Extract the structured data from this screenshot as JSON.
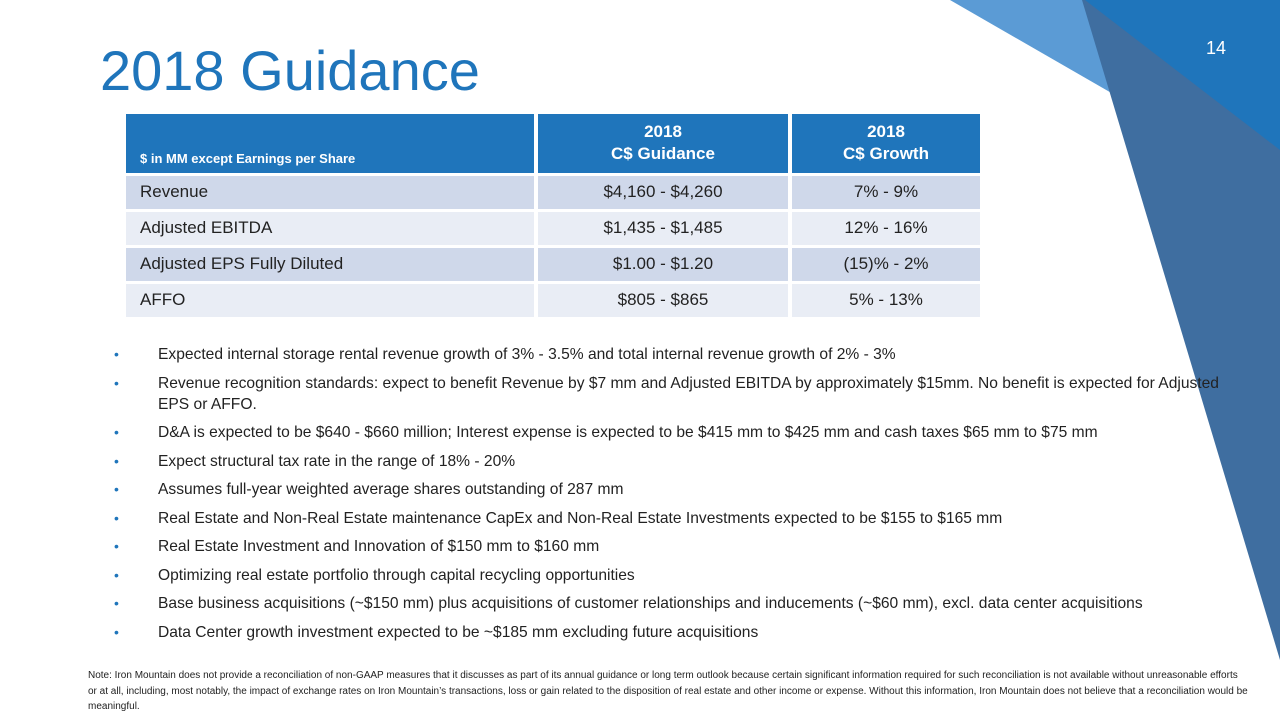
{
  "page": {
    "title": "2018 Guidance",
    "number": "14"
  },
  "theme": {
    "accent": "#1f75bb",
    "row_dark": "#cfd8ea",
    "row_light": "#e9edf5",
    "deco_light": "#5b9bd5",
    "deco_dark": "#3f6ea0"
  },
  "table": {
    "header_label": "$ in MM except Earnings per Share",
    "columns": [
      {
        "year": "2018",
        "name": "C$ Guidance"
      },
      {
        "year": "2018",
        "name": "C$ Growth"
      }
    ],
    "rows": [
      {
        "metric": "Revenue",
        "guidance": "$4,160 - $4,260",
        "growth": "7% - 9%"
      },
      {
        "metric": "Adjusted EBITDA",
        "guidance": "$1,435 - $1,485",
        "growth": "12% - 16%"
      },
      {
        "metric": "Adjusted EPS Fully Diluted",
        "guidance": "$1.00 - $1.20",
        "growth": "(15)% - 2%"
      },
      {
        "metric": "AFFO",
        "guidance": "$805 - $865",
        "growth": "5% - 13%"
      }
    ]
  },
  "bullets": {
    "marker": "•",
    "items": [
      "Expected internal storage rental revenue growth of 3% - 3.5% and total internal revenue growth of 2% - 3%",
      "Revenue recognition standards: expect to benefit Revenue by $7 mm and Adjusted EBITDA by approximately $15mm. No benefit is expected for Adjusted EPS or AFFO.",
      "D&A is expected to be $640 - $660 million; Interest expense is expected to be $415 mm to $425 mm and cash taxes $65 mm to $75 mm",
      "Expect structural tax rate in the range of 18% - 20%",
      "Assumes full-year weighted average shares outstanding of  287 mm",
      "Real Estate and Non-Real Estate maintenance CapEx and Non-Real Estate Investments expected to be $155 to $165 mm",
      "Real Estate Investment and Innovation of $150 mm to $160 mm",
      "Optimizing real estate portfolio through capital recycling opportunities",
      "Base business acquisitions (~$150 mm) plus acquisitions of customer relationships and inducements (~$60 mm), excl. data center acquisitions",
      "Data Center growth investment expected to be ~$185 mm excluding future acquisitions"
    ]
  },
  "footnote": "Note: Iron Mountain does not provide a reconciliation of non-GAAP measures that it discusses as part of its annual guidance or long term outlook because certain significant information required for such reconciliation is not available without unreasonable efforts or at all, including, most notably, the impact of exchange rates on Iron Mountain’s transactions, loss or gain related to the disposition of real estate and other income or expense. Without this information, Iron Mountain does not believe that a reconciliation would be meaningful."
}
